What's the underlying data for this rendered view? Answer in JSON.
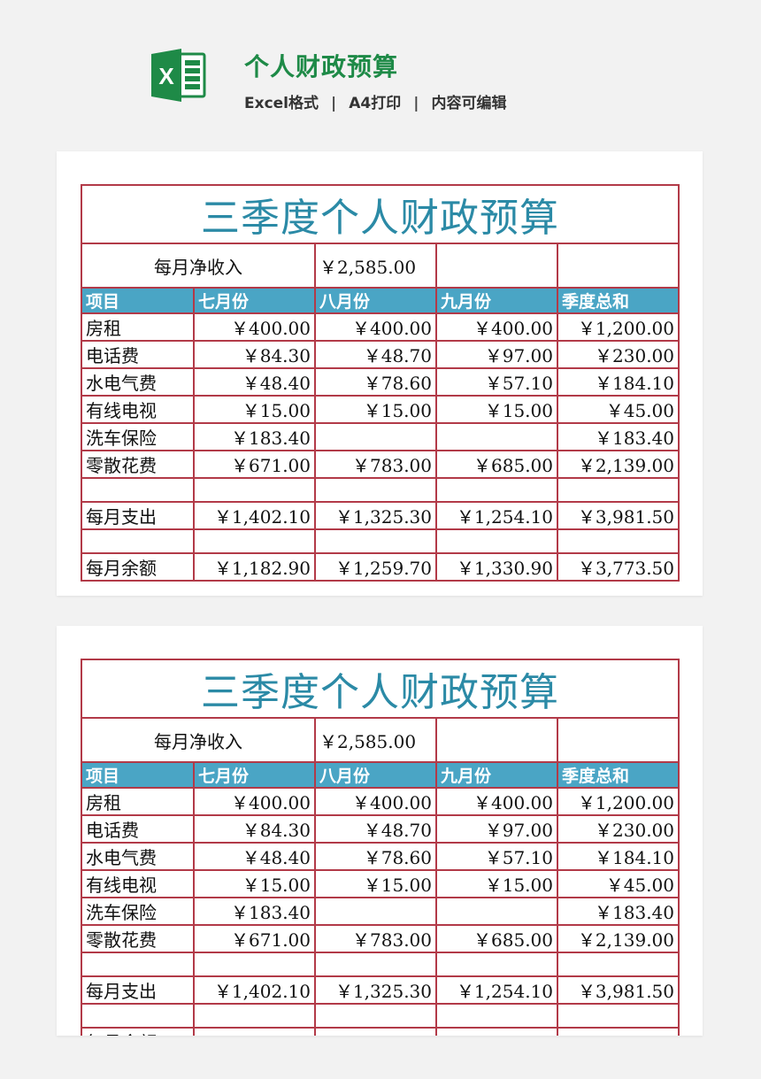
{
  "header": {
    "title": "个人财政预算",
    "meta": [
      "Excel格式",
      "A4打印",
      "内容可编辑"
    ],
    "separator": "|",
    "icon_label": "X"
  },
  "sheet": {
    "title": "三季度个人财政预算",
    "income_label": "每月净收入",
    "income_value": "￥2,585.00",
    "columns": [
      "项目",
      "七月份",
      "八月份",
      "九月份",
      "季度总和"
    ],
    "rows": [
      [
        "房租",
        "￥400.00",
        "￥400.00",
        "￥400.00",
        "￥1,200.00"
      ],
      [
        "电话费",
        "￥84.30",
        "￥48.70",
        "￥97.00",
        "￥230.00"
      ],
      [
        "水电气费",
        "￥48.40",
        "￥78.60",
        "￥57.10",
        "￥184.10"
      ],
      [
        "有线电视",
        "￥15.00",
        "￥15.00",
        "￥15.00",
        "￥45.00"
      ],
      [
        "洗车保险",
        "￥183.40",
        "",
        "",
        "￥183.40"
      ],
      [
        "零散花费",
        "￥671.00",
        "￥783.00",
        "￥685.00",
        "￥2,139.00"
      ],
      [
        "",
        "",
        "",
        "",
        ""
      ],
      [
        "每月支出",
        "￥1,402.10",
        "￥1,325.30",
        "￥1,254.10",
        "￥3,981.50"
      ],
      [
        "",
        "",
        "",
        "",
        ""
      ],
      [
        "每月余额",
        "￥1,182.90",
        "￥1,259.70",
        "￥1,330.90",
        "￥3,773.50"
      ]
    ]
  },
  "colors": {
    "brand_green": "#1e8a47",
    "title_teal": "#2b8aa6",
    "header_fill": "#4aa5c5",
    "grid_red": "#b23a48"
  }
}
